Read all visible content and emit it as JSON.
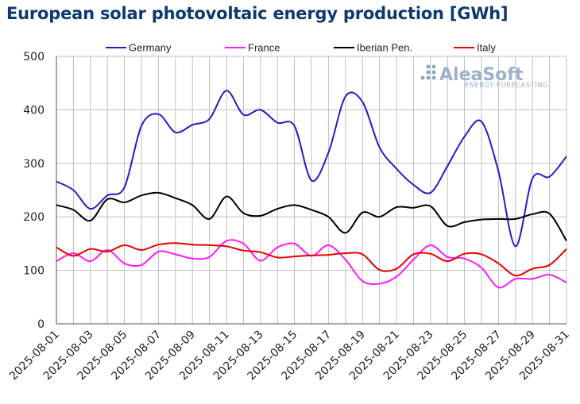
{
  "title": "European solar photovoltaic energy production [GWh]",
  "watermark": {
    "brand": "AleaSoft",
    "tagline": "ENERGY FORECASTING"
  },
  "chart_data": {
    "type": "line",
    "title": "European solar photovoltaic energy production [GWh]",
    "xlabel": "",
    "ylabel": "",
    "ylim": [
      0,
      500
    ],
    "yticks": [
      0,
      100,
      200,
      300,
      400,
      500
    ],
    "grid": true,
    "legend_position": "top",
    "x": [
      "2025-08-01",
      "2025-08-02",
      "2025-08-03",
      "2025-08-04",
      "2025-08-05",
      "2025-08-06",
      "2025-08-07",
      "2025-08-08",
      "2025-08-09",
      "2025-08-10",
      "2025-08-11",
      "2025-08-12",
      "2025-08-13",
      "2025-08-14",
      "2025-08-15",
      "2025-08-16",
      "2025-08-17",
      "2025-08-18",
      "2025-08-19",
      "2025-08-20",
      "2025-08-21",
      "2025-08-22",
      "2025-08-23",
      "2025-08-24",
      "2025-08-25",
      "2025-08-26",
      "2025-08-27",
      "2025-08-28",
      "2025-08-29",
      "2025-08-30",
      "2025-08-31"
    ],
    "xtick_labels": [
      "2025-08-01",
      "2025-08-03",
      "2025-08-05",
      "2025-08-07",
      "2025-08-09",
      "2025-08-11",
      "2025-08-13",
      "2025-08-15",
      "2025-08-17",
      "2025-08-19",
      "2025-08-21",
      "2025-08-23",
      "2025-08-25",
      "2025-08-27",
      "2025-08-29",
      "2025-08-31"
    ],
    "series": [
      {
        "name": "Germany",
        "color": "#1f1fc8",
        "values": [
          266,
          250,
          215,
          240,
          255,
          370,
          392,
          358,
          372,
          383,
          436,
          391,
          400,
          376,
          370,
          268,
          320,
          425,
          415,
          330,
          290,
          260,
          245,
          295,
          350,
          378,
          285,
          145,
          272,
          275,
          313
        ]
      },
      {
        "name": "France",
        "color": "#ff1aff",
        "values": [
          117,
          132,
          117,
          138,
          113,
          110,
          135,
          130,
          122,
          125,
          155,
          150,
          118,
          143,
          150,
          127,
          147,
          120,
          80,
          75,
          88,
          120,
          147,
          125,
          122,
          105,
          68,
          84,
          84,
          92,
          77
        ]
      },
      {
        "name": "Iberian Pen.",
        "color": "#000000",
        "values": [
          222,
          213,
          193,
          233,
          227,
          240,
          245,
          235,
          222,
          196,
          238,
          207,
          202,
          215,
          222,
          213,
          200,
          170,
          208,
          200,
          218,
          217,
          220,
          183,
          190,
          195,
          196,
          196,
          205,
          206,
          155
        ]
      },
      {
        "name": "Italy",
        "color": "#e80000",
        "values": [
          143,
          127,
          140,
          135,
          147,
          138,
          148,
          151,
          148,
          147,
          145,
          137,
          134,
          124,
          126,
          128,
          129,
          132,
          130,
          101,
          103,
          130,
          131,
          117,
          131,
          130,
          113,
          90,
          103,
          110,
          140
        ]
      }
    ]
  }
}
